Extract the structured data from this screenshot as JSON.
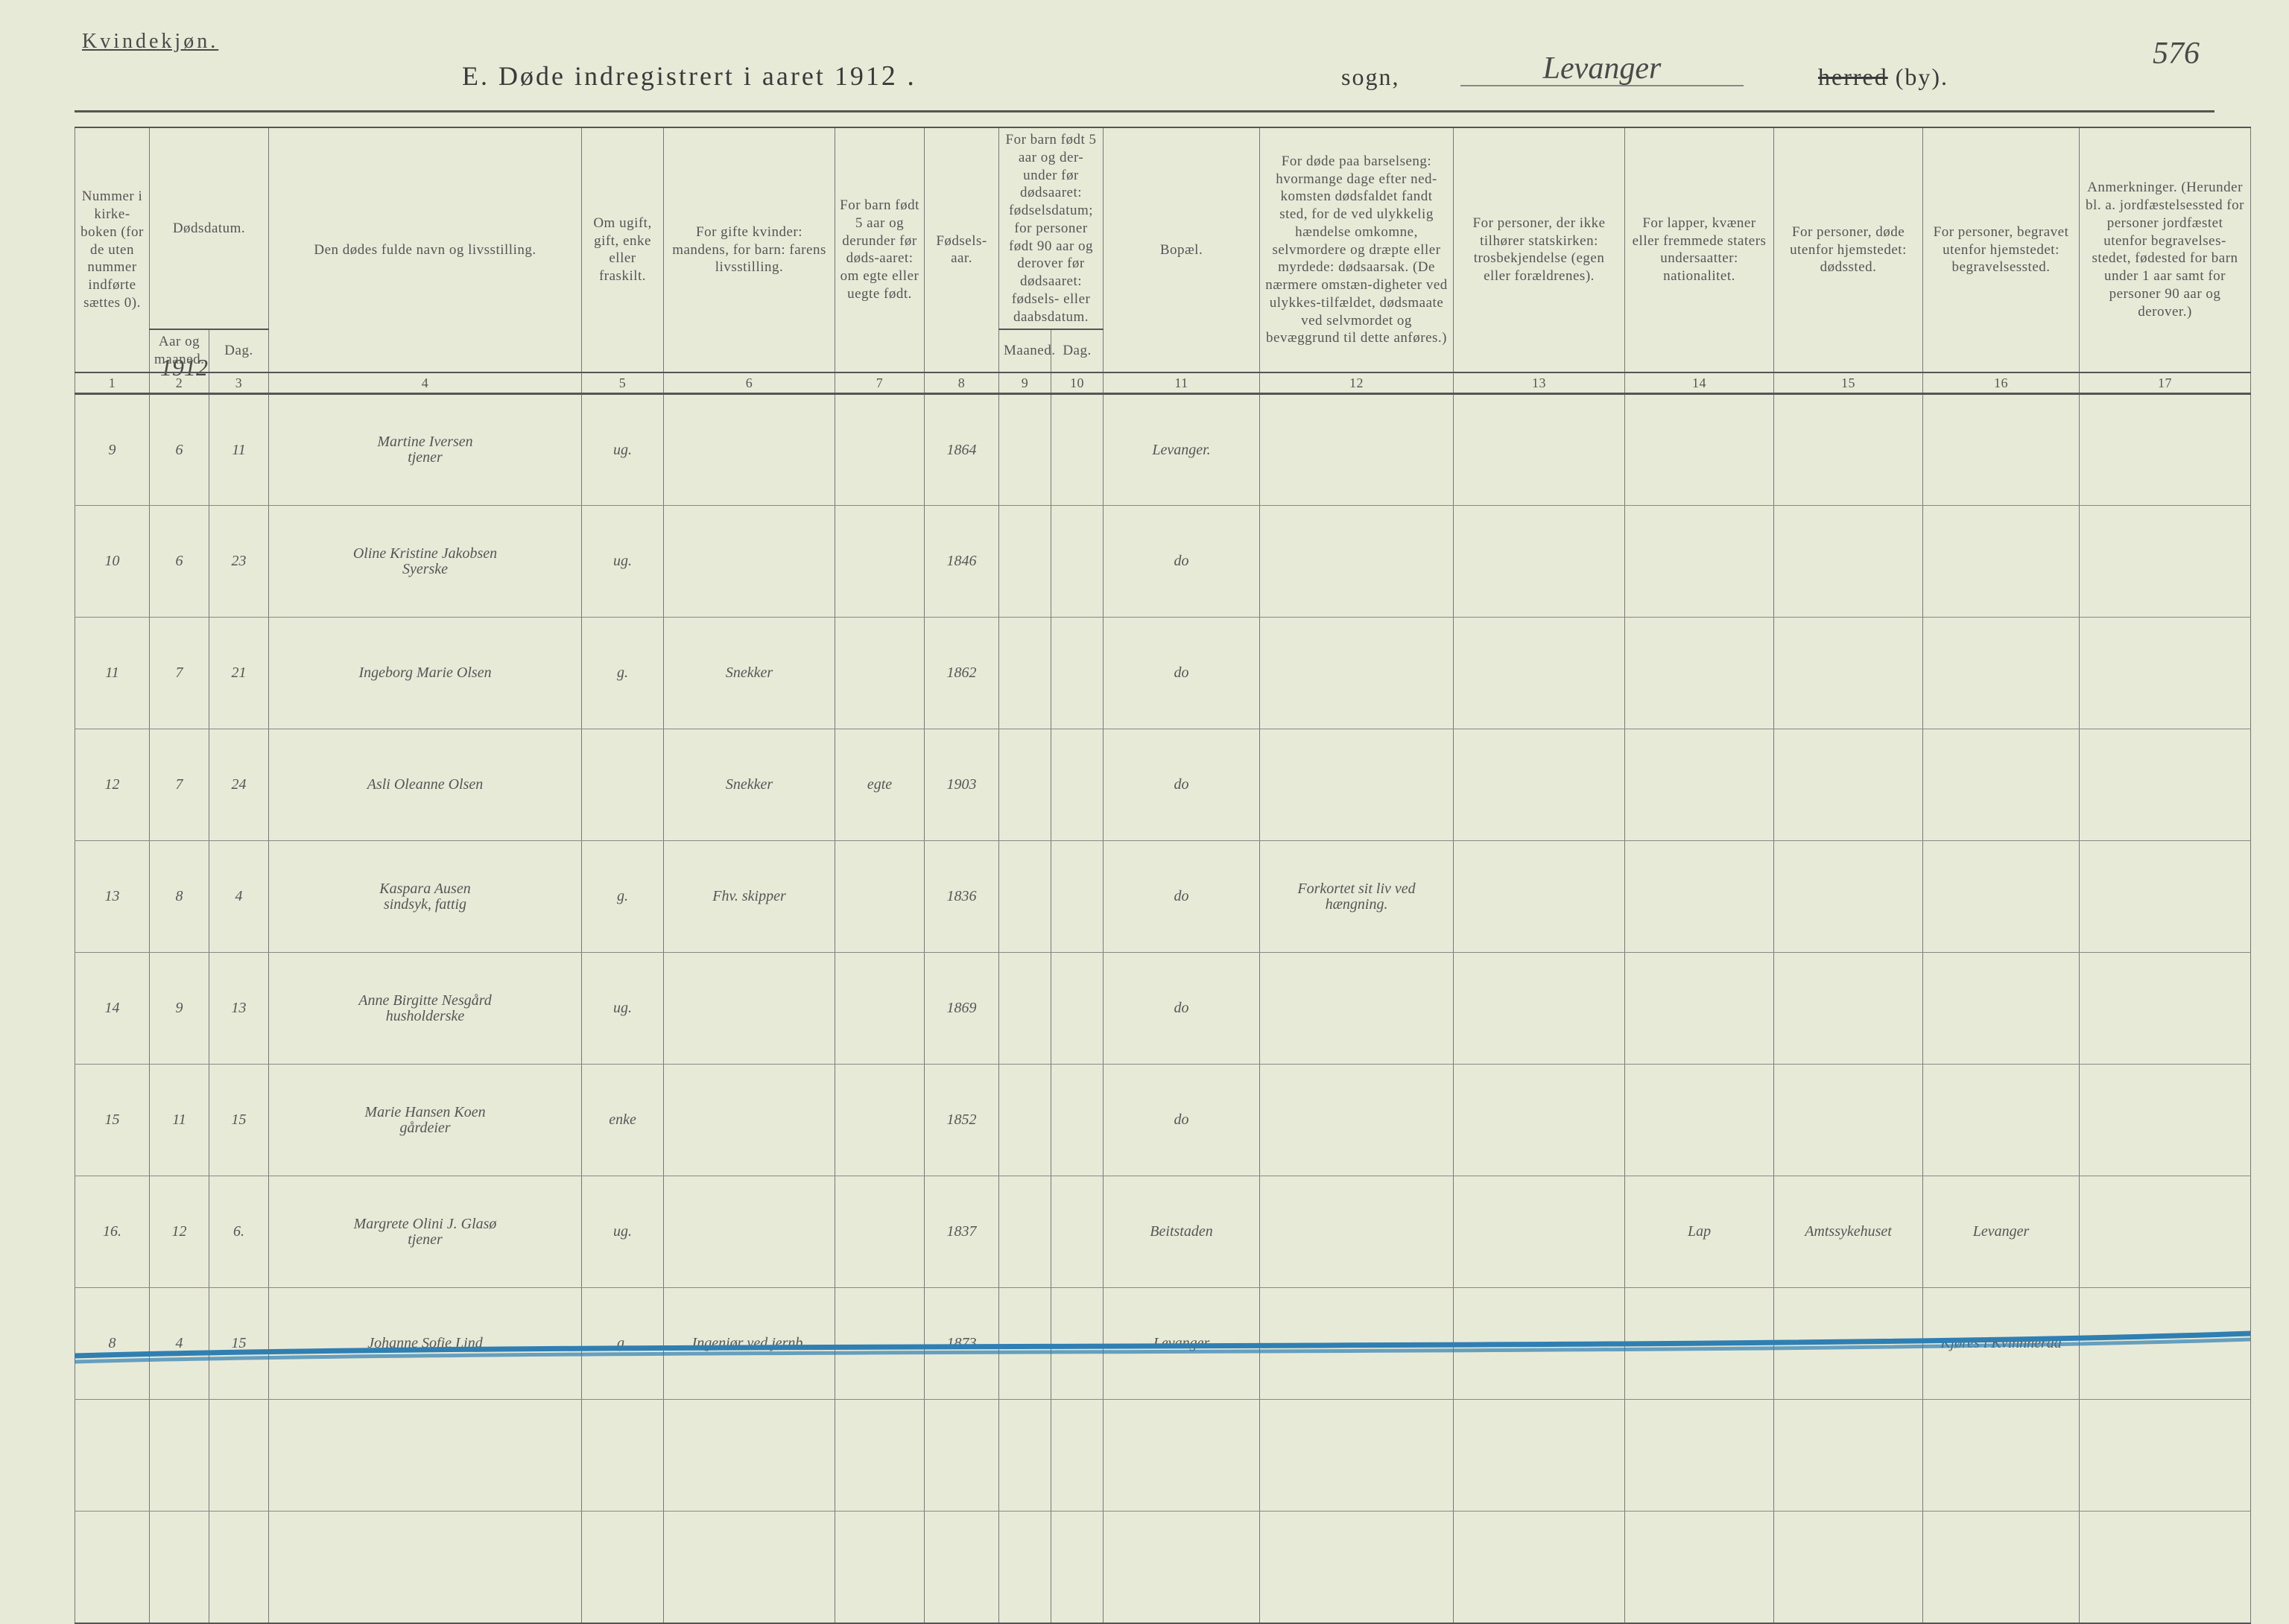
{
  "page": {
    "gender_heading": "Kvindekjøn.",
    "title_prefix": "E.  Døde indregistrert i aaret 191",
    "title_year_suffix": "2 .",
    "sogn_label": "sogn,",
    "sogn_value": "Levanger",
    "herred_label_strike": "herred",
    "herred_label_by": "(by).",
    "page_number": "576",
    "background_color": "#e8ead8",
    "ink_color": "#4a4a4a",
    "rule_color": "#555555",
    "blue_pencil": "#2f7fb3"
  },
  "columns": {
    "c1": "Nummer i kirke-boken (for de uten nummer indførte sættes 0).",
    "c23_top": "Dødsdatum.",
    "c2": "Aar og maaned.",
    "c3": "Dag.",
    "c4": "Den dødes fulde navn og livsstilling.",
    "c5": "Om ugift, gift, enke eller fraskilt.",
    "c6": "For gifte kvinder: mandens, for barn: farens livsstilling.",
    "c7": "For barn født 5 aar og derunder før døds-aaret: om egte eller uegte født.",
    "c8": "Fødsels-aar.",
    "c910_top": "For barn født 5 aar og der-under før dødsaaret: fødselsdatum; for personer født 90 aar og derover før dødsaaret: fødsels- eller daabsdatum.",
    "c9": "Maaned.",
    "c10": "Dag.",
    "c11": "Bopæl.",
    "c12": "For døde paa barselseng: hvormange dage efter ned-komsten dødsfaldet fandt sted, for de ved ulykkelig hændelse omkomne, selvmordere og dræpte eller myrdede: dødsaarsak. (De nærmere omstæn-digheter ved ulykkes-tilfældet, dødsmaate ved selvmordet og bevæggrund til dette anføres.)",
    "c13": "For personer, der ikke tilhører statskirken: trosbekjendelse (egen eller forældrenes).",
    "c14": "For lapper, kvæner eller fremmede staters undersaatter: nationalitet.",
    "c15": "For personer, døde utenfor hjemstedet: dødssted.",
    "c16": "For personer, begravet utenfor hjemstedet: begravelsessted.",
    "c17": "Anmerkninger. (Herunder bl. a. jordfæstelsessted for personer jordfæstet utenfor begravelses-stedet, fødested for barn under 1 aar samt for personer 90 aar og derover.)"
  },
  "col_index": [
    "1",
    "2",
    "3",
    "4",
    "5",
    "6",
    "7",
    "8",
    "9",
    "10",
    "11",
    "12",
    "13",
    "14",
    "15",
    "16",
    "17"
  ],
  "year_above": "1912",
  "rows": [
    {
      "num": "9",
      "mnd": "6",
      "dag": "11",
      "name": "Martine Iversen\ntjener",
      "stand": "ug.",
      "col6": "",
      "col7": "",
      "faar": "1864",
      "c9": "",
      "c10": "",
      "bopel": "Levanger.",
      "c12": "",
      "c13": "",
      "c14": "",
      "c15": "",
      "c16": "",
      "c17": ""
    },
    {
      "num": "10",
      "mnd": "6",
      "dag": "23",
      "name": "Oline Kristine Jakobsen\nSyerske",
      "stand": "ug.",
      "col6": "",
      "col7": "",
      "faar": "1846",
      "c9": "",
      "c10": "",
      "bopel": "do",
      "c12": "",
      "c13": "",
      "c14": "",
      "c15": "",
      "c16": "",
      "c17": ""
    },
    {
      "num": "11",
      "mnd": "7",
      "dag": "21",
      "name": "Ingeborg Marie Olsen",
      "stand": "g.",
      "col6": "Snekker",
      "col7": "",
      "faar": "1862",
      "c9": "",
      "c10": "",
      "bopel": "do",
      "c12": "",
      "c13": "",
      "c14": "",
      "c15": "",
      "c16": "",
      "c17": ""
    },
    {
      "num": "12",
      "mnd": "7",
      "dag": "24",
      "name": "Asli Oleanne Olsen",
      "stand": "",
      "col6": "Snekker",
      "col7": "egte",
      "faar": "1903",
      "c9": "",
      "c10": "",
      "bopel": "do",
      "c12": "",
      "c13": "",
      "c14": "",
      "c15": "",
      "c16": "",
      "c17": ""
    },
    {
      "num": "13",
      "mnd": "8",
      "dag": "4",
      "name": "Kaspara Ausen\nsindsyk, fattig",
      "stand": "g.",
      "col6": "Fhv. skipper",
      "col7": "",
      "faar": "1836",
      "c9": "",
      "c10": "",
      "bopel": "do",
      "c12": "Forkortet sit liv ved hængning.",
      "c13": "",
      "c14": "",
      "c15": "",
      "c16": "",
      "c17": ""
    },
    {
      "num": "14",
      "mnd": "9",
      "dag": "13",
      "name": "Anne Birgitte Nesgård\nhusholderske",
      "stand": "ug.",
      "col6": "",
      "col7": "",
      "faar": "1869",
      "c9": "",
      "c10": "",
      "bopel": "do",
      "c12": "",
      "c13": "",
      "c14": "",
      "c15": "",
      "c16": "",
      "c17": ""
    },
    {
      "num": "15",
      "mnd": "11",
      "dag": "15",
      "name": "Marie Hansen Koen\ngårdeier",
      "stand": "enke",
      "col6": "",
      "col7": "",
      "faar": "1852",
      "c9": "",
      "c10": "",
      "bopel": "do",
      "c12": "",
      "c13": "",
      "c14": "",
      "c15": "",
      "c16": "",
      "c17": ""
    },
    {
      "num": "16.",
      "mnd": "12",
      "dag": "6.",
      "name": "Margrete Olini J. Glasø\ntjener",
      "stand": "ug.",
      "col6": "",
      "col7": "",
      "faar": "1837",
      "c9": "",
      "c10": "",
      "bopel": "Beitstaden",
      "c12": "",
      "c13": "",
      "c14": "Lap",
      "c15": "Amtssykehuset",
      "c16": "Levanger",
      "c17": ""
    },
    {
      "num": "8",
      "mnd": "4",
      "dag": "15",
      "name": "Johanne Sofie Lind",
      "stand": "g.",
      "col6": "Ingeniør ved jernb.",
      "col7": "",
      "faar": "1873",
      "c9": "",
      "c10": "",
      "bopel": "Levanger",
      "c12": "",
      "c13": "",
      "c14": "",
      "c15": "",
      "c16": "Kjøres i Kvinnherad",
      "c17": "",
      "struck": true
    },
    {
      "blank": true
    },
    {
      "blank": true
    }
  ]
}
